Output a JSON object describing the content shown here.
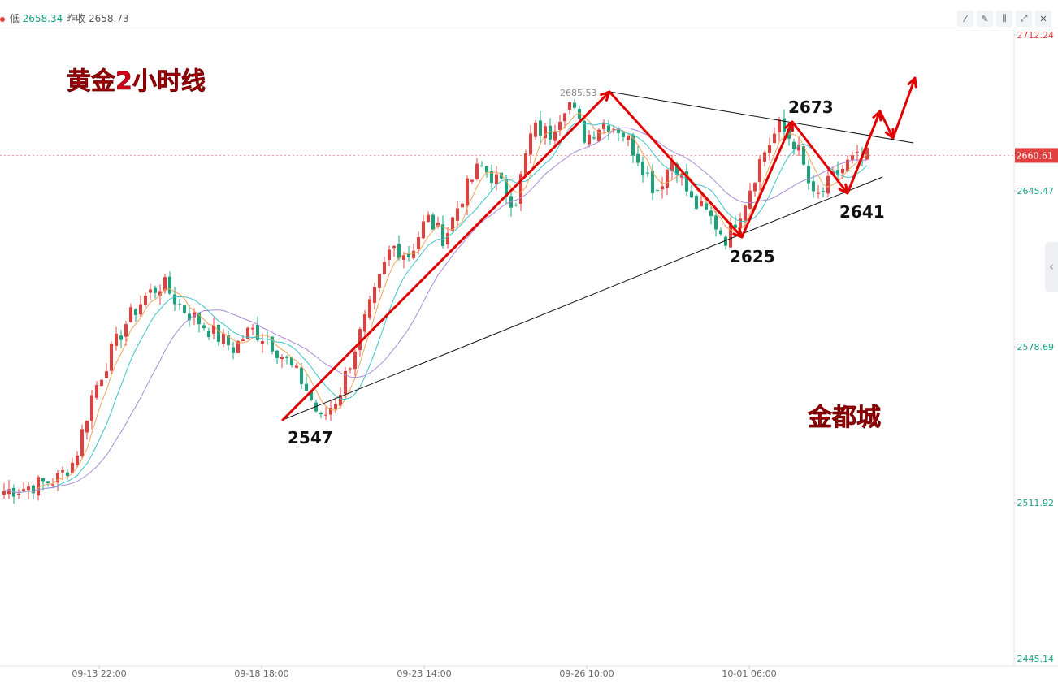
{
  "header": {
    "low_label": "低",
    "low_value": "2658.34",
    "prev_close_label": "昨收",
    "prev_close_value": "2658.73"
  },
  "toolbar": {
    "icons": [
      "line-tool-icon",
      "pen-tool-icon",
      "candle-type-icon",
      "expand-icon",
      "close-icon"
    ]
  },
  "colors": {
    "up": "#e2403f",
    "down": "#1aa37a",
    "arrow": "#e00000",
    "ma_orange": "#f0a35a",
    "ma_teal": "#3bc3c9",
    "ma_purple": "#a98bd8"
  },
  "chart_data": {
    "type": "candlestick",
    "title": "黄金2小时线",
    "watermark": "金都城",
    "y_axis": {
      "ticks": [
        "2712.24",
        "2645.47",
        "2578.69",
        "2511.92",
        "2445.14"
      ],
      "range": [
        2445.14,
        2712.24
      ]
    },
    "x_axis": {
      "ticks": [
        "09-13 22:00",
        "09-18 18:00",
        "09-23 14:00",
        "09-26 10:00",
        "10-01 06:00"
      ]
    },
    "current_price": "2660.61",
    "high_marker": "2685.53",
    "annotations": [
      "2547",
      "2625",
      "2673",
      "2641"
    ],
    "price_path": [
      2517,
      2518,
      2520,
      2522,
      2530,
      2558,
      2575,
      2590,
      2600,
      2606,
      2596,
      2590,
      2584,
      2578,
      2586,
      2582,
      2573,
      2563,
      2547,
      2558,
      2580,
      2600,
      2622,
      2618,
      2634,
      2625,
      2643,
      2656,
      2650,
      2640,
      2672,
      2670,
      2685,
      2668,
      2675,
      2672,
      2660,
      2645,
      2660,
      2641,
      2635,
      2625,
      2640,
      2660,
      2673,
      2665,
      2641,
      2650,
      2658,
      2660
    ]
  }
}
